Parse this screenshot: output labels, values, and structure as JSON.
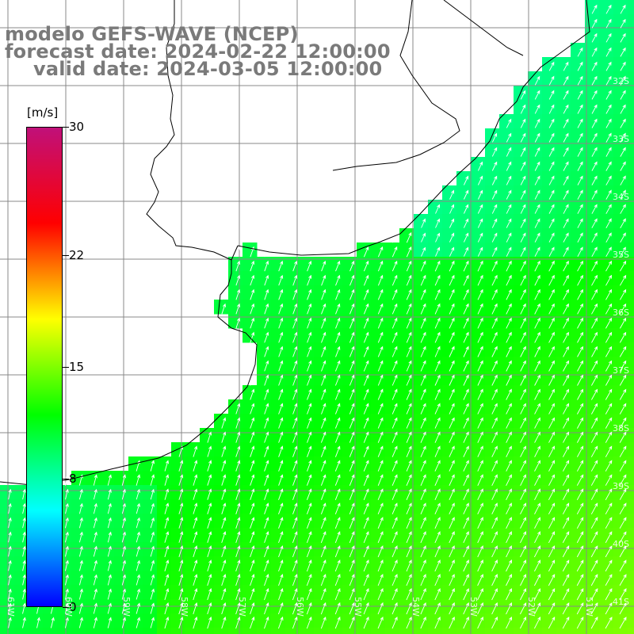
{
  "title": {
    "line1": "modelo GEFS-WAVE (NCEP)",
    "line2": "forecast date: 2024-02-22 12:00:00",
    "line3": "valid date: 2024-03-05 12:00:00"
  },
  "colorbar": {
    "unit": "[m/s]",
    "ticks": [
      {
        "label": "30",
        "value": 30
      },
      {
        "label": "22",
        "value": 22
      },
      {
        "label": "15",
        "value": 15
      },
      {
        "label": "8",
        "value": 8
      },
      {
        "label": "0",
        "value": 0
      }
    ],
    "range": [
      0,
      30
    ],
    "colors": [
      "#0000ff",
      "#00ffff",
      "#00ff00",
      "#ffff00",
      "#ff0000",
      "#c0107a"
    ]
  },
  "map": {
    "lat_labels": [
      "32S",
      "33S",
      "34S",
      "35S",
      "36S",
      "37S",
      "38S",
      "39S",
      "40S",
      "41S"
    ],
    "lon_labels": [
      "61W",
      "60W",
      "59W",
      "58W",
      "57W",
      "56W",
      "55W",
      "54W",
      "53W",
      "52W",
      "51W"
    ],
    "land_color": "#ffffff",
    "arrow_color": "#ffffff",
    "coast_color": "#000000",
    "grid_color": "#888888",
    "wind_direction": "from south-southwest (arrows pointing north-northeast)"
  }
}
